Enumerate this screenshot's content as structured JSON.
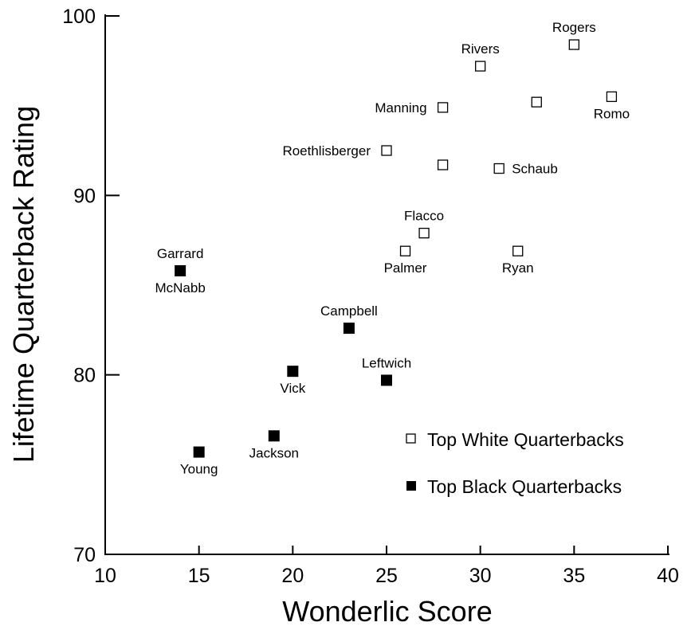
{
  "chart_data": {
    "type": "scatter",
    "xlabel": "Wonderlic Score",
    "ylabel": "Lifetime Quarterback Rating",
    "xlim": [
      10,
      40
    ],
    "ylim": [
      70,
      100
    ],
    "x_ticks": [
      10,
      15,
      20,
      25,
      30,
      35,
      40
    ],
    "y_ticks": [
      70,
      80,
      90,
      100
    ],
    "grid": false,
    "legend_position": "bottom-right",
    "series": [
      {
        "name": "Top White Quarterbacks",
        "marker": "open-square",
        "color": "#000000",
        "points": [
          {
            "x": 35,
            "y": 98.4,
            "label": "Rogers",
            "label_pos": "above"
          },
          {
            "x": 30,
            "y": 97.2,
            "label": "Rivers",
            "label_pos": "above"
          },
          {
            "x": 28,
            "y": 94.9,
            "label": "Manning",
            "label_pos": "left"
          },
          {
            "x": 33,
            "y": 95.2,
            "label": "",
            "label_pos": "none"
          },
          {
            "x": 37,
            "y": 95.5,
            "label": "Romo",
            "label_pos": "below"
          },
          {
            "x": 25,
            "y": 92.5,
            "label": "Roethlisberger",
            "label_pos": "left"
          },
          {
            "x": 28,
            "y": 91.7,
            "label": "",
            "label_pos": "none"
          },
          {
            "x": 31,
            "y": 91.5,
            "label": "Schaub",
            "label_pos": "right"
          },
          {
            "x": 27,
            "y": 87.9,
            "label": "Flacco",
            "label_pos": "above"
          },
          {
            "x": 26,
            "y": 86.9,
            "label": "Palmer",
            "label_pos": "below"
          },
          {
            "x": 32,
            "y": 86.9,
            "label": "Ryan",
            "label_pos": "below"
          }
        ]
      },
      {
        "name": "Top Black Quarterbacks",
        "marker": "filled-square",
        "color": "#000000",
        "points": [
          {
            "x": 14,
            "y": 85.8,
            "label": "Garrard",
            "label_pos": "above"
          },
          {
            "x": 14,
            "y": 85.8,
            "label": "McNabb",
            "label_pos": "below"
          },
          {
            "x": 23,
            "y": 82.6,
            "label": "Campbell",
            "label_pos": "above"
          },
          {
            "x": 20,
            "y": 80.2,
            "label": "Vick",
            "label_pos": "below"
          },
          {
            "x": 25,
            "y": 79.7,
            "label": "Leftwich",
            "label_pos": "above"
          },
          {
            "x": 19,
            "y": 76.6,
            "label": "Jackson",
            "label_pos": "below"
          },
          {
            "x": 15,
            "y": 75.7,
            "label": "Young",
            "label_pos": "below"
          }
        ]
      }
    ]
  }
}
